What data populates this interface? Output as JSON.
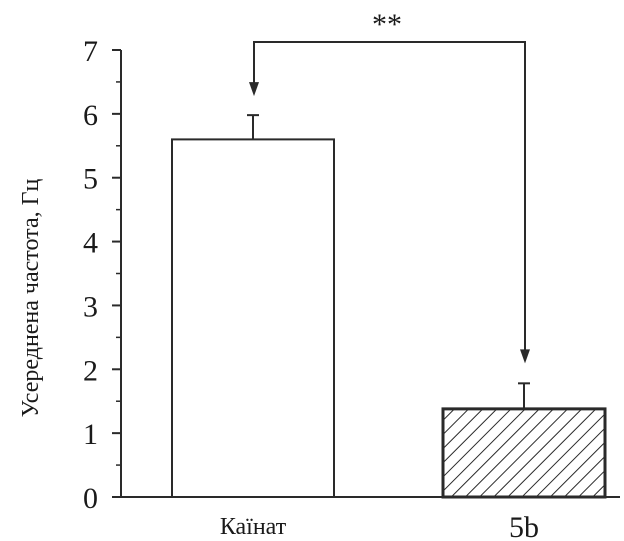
{
  "chart_data": {
    "type": "bar",
    "categories": [
      "Каїнат",
      "5b"
    ],
    "values": [
      5.6,
      1.38
    ],
    "errors": [
      0.38,
      0.4
    ],
    "ylabel": "Усереднена частота, Гц",
    "ylim": [
      0,
      7
    ],
    "yticks": [
      "0",
      "1",
      "2",
      "3",
      "4",
      "5",
      "6",
      "7"
    ],
    "significance": "**",
    "grid": false,
    "colors": {
      "bar1_fill": "#ffffff",
      "bar2_hatch": "#2a2a2a",
      "axis": "#2a2a2a"
    }
  }
}
